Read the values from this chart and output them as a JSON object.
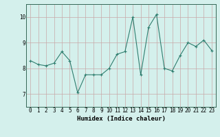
{
  "x": [
    0,
    1,
    2,
    3,
    4,
    5,
    6,
    7,
    8,
    9,
    10,
    11,
    12,
    13,
    14,
    15,
    16,
    17,
    18,
    19,
    20,
    21,
    22,
    23
  ],
  "y": [
    8.3,
    8.15,
    8.1,
    8.2,
    8.65,
    8.3,
    7.05,
    7.75,
    7.75,
    7.75,
    8.0,
    8.55,
    8.65,
    10.0,
    7.75,
    9.6,
    10.1,
    8.0,
    7.9,
    8.5,
    9.0,
    8.85,
    9.1,
    8.7
  ],
  "line_color": "#2e7d6e",
  "marker": "+",
  "marker_size": 3,
  "background_color": "#d4f0ec",
  "grid_color": "#c8a8a8",
  "xlabel": "Humidex (Indice chaleur)",
  "xlim": [
    -0.5,
    23.5
  ],
  "ylim": [
    6.5,
    10.5
  ],
  "yticks": [
    7,
    8,
    9,
    10
  ],
  "xtick_labels": [
    "0",
    "1",
    "2",
    "3",
    "4",
    "5",
    "6",
    "7",
    "8",
    "9",
    "10",
    "11",
    "12",
    "13",
    "14",
    "15",
    "16",
    "17",
    "18",
    "19",
    "20",
    "21",
    "22",
    "23"
  ],
  "xlabel_fontsize": 6.5,
  "tick_fontsize": 5.5
}
